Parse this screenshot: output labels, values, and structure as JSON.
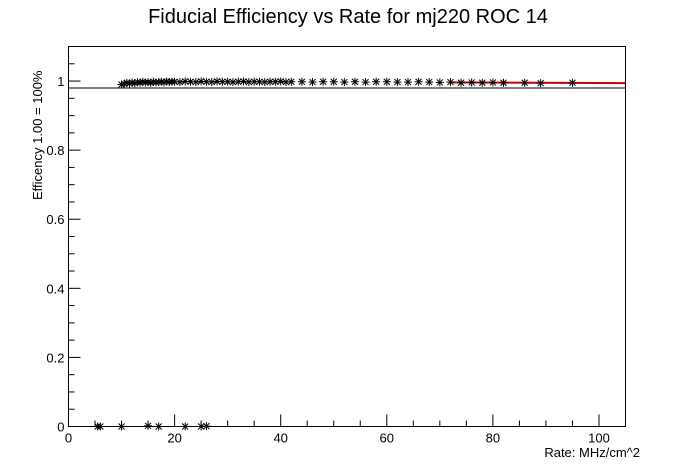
{
  "chart_data": {
    "type": "scatter",
    "title": "Fiducial Efficiency vs Rate for mj220 ROC 14",
    "xlabel": "Rate: MHz/cm^2",
    "ylabel": "Efficency 1.00 = 100%",
    "xlim": [
      0,
      105
    ],
    "ylim": [
      0,
      1.1
    ],
    "x_ticks": [
      "0",
      "20",
      "40",
      "60",
      "80",
      "100"
    ],
    "y_ticks": [
      "0",
      "0.2",
      "0.4",
      "0.6",
      "0.8",
      "1"
    ],
    "reference_line_y": 0.98,
    "fit_line": {
      "x": [
        72,
        105
      ],
      "y": [
        0.996,
        0.994
      ],
      "color": "#cc0000"
    },
    "series": [
      {
        "marker": "asterisk",
        "x": [
          10,
          10.5,
          11,
          11.5,
          12,
          12.5,
          13,
          13.5,
          14,
          14.5,
          15,
          15.5,
          16,
          16.5,
          17,
          17.5,
          18,
          18.5,
          19,
          19.5,
          20,
          21,
          22,
          23,
          24,
          25,
          26,
          27,
          28,
          29,
          30,
          31,
          32,
          33,
          34,
          35,
          36,
          37,
          38,
          39,
          40,
          41,
          42,
          44,
          46,
          48,
          50,
          52,
          54,
          56,
          58,
          60,
          62,
          64,
          66,
          68,
          70,
          72,
          74,
          76,
          78,
          80,
          82,
          86,
          89,
          95,
          5.5,
          6,
          10,
          15,
          17,
          22,
          25,
          26
        ],
        "y": [
          0.99,
          0.992,
          0.995,
          0.993,
          0.996,
          0.994,
          0.997,
          0.995,
          0.998,
          0.996,
          0.997,
          0.995,
          0.998,
          0.996,
          0.997,
          0.998,
          0.996,
          0.999,
          0.997,
          0.998,
          0.998,
          0.997,
          0.999,
          0.998,
          0.997,
          0.999,
          0.998,
          0.997,
          0.999,
          0.998,
          0.998,
          0.997,
          0.998,
          0.999,
          0.997,
          0.998,
          0.998,
          0.997,
          0.998,
          0.998,
          0.999,
          0.997,
          0.998,
          0.998,
          0.997,
          0.998,
          0.998,
          0.997,
          0.998,
          0.997,
          0.998,
          0.998,
          0.997,
          0.997,
          0.998,
          0.997,
          0.996,
          0.997,
          0.995,
          0.996,
          0.995,
          0.996,
          0.995,
          0.995,
          0.994,
          0.995,
          0,
          0,
          0,
          0.002,
          0,
          0,
          0,
          0.001
        ]
      }
    ]
  }
}
